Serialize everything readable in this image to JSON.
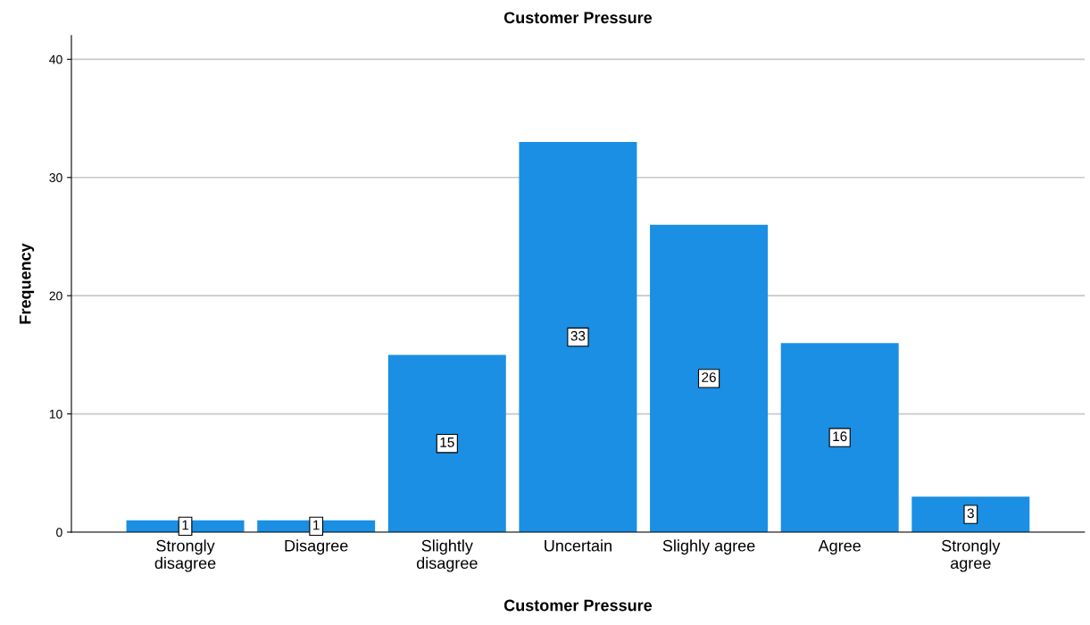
{
  "chart_data": {
    "type": "bar",
    "title": "Customer Pressure",
    "xlabel": "Customer Pressure",
    "ylabel": "Frequency",
    "categories": [
      "Strongly\ndisagree",
      "Disagree",
      "Slightly\ndisagree",
      "Uncertain",
      "Slighly agree",
      "Agree",
      "Strongly\nagree"
    ],
    "values": [
      1,
      1,
      15,
      33,
      26,
      16,
      3
    ],
    "color": "#1a8fe3",
    "ylim": [
      0,
      42
    ],
    "yticks": [
      0,
      10,
      20,
      30,
      40
    ],
    "grid": "y",
    "data_labels": true,
    "legend": false
  }
}
